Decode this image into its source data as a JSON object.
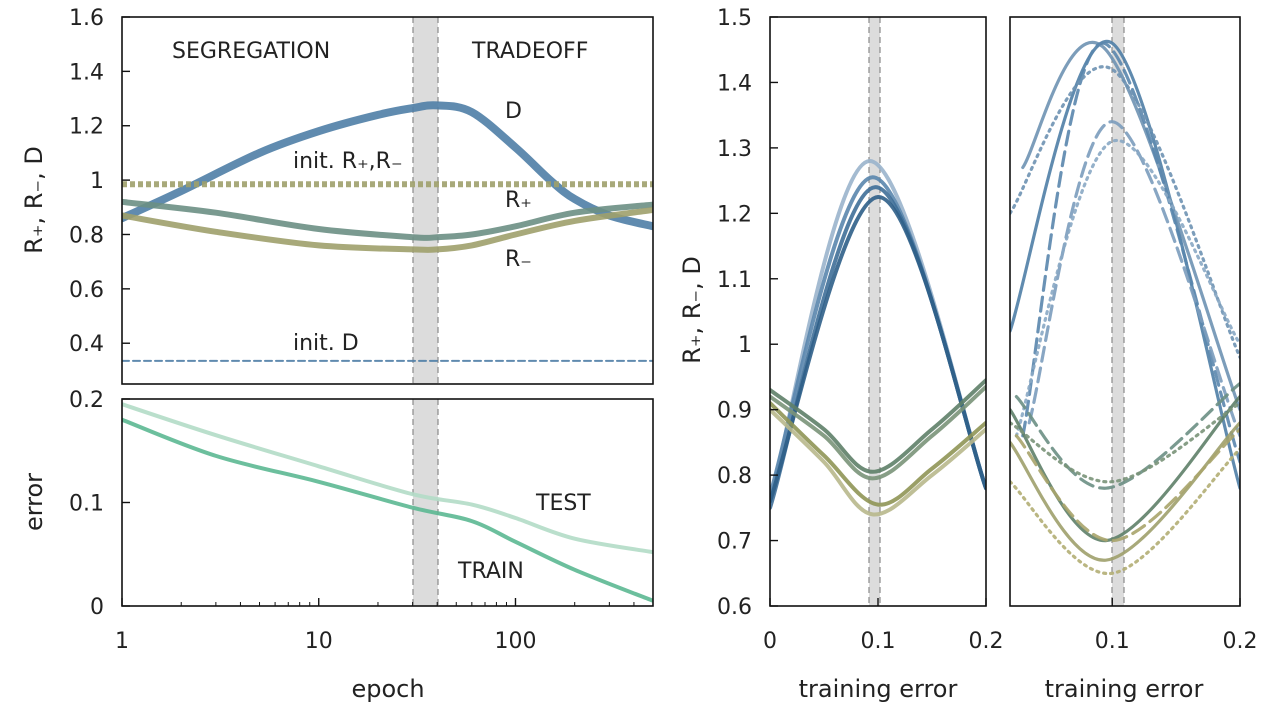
{
  "chart_data": [
    {
      "id": "top-left",
      "type": "line",
      "title": "",
      "xscale": "log",
      "xlim": [
        1,
        500
      ],
      "ylim": [
        0.25,
        1.6
      ],
      "ylabel": "R₊, R₋, D",
      "yticks": [
        "0.4",
        "0.6",
        "0.8",
        "1",
        "1.2",
        "1.4",
        "1.6"
      ],
      "region_labels": {
        "left": "SEGREGATION",
        "right": "TRADEOFF"
      },
      "shaded_band": [
        30,
        40
      ],
      "series": [
        {
          "name": "D",
          "label": "D",
          "color": "#4f7ea6",
          "x": [
            1,
            2,
            5,
            10,
            20,
            30,
            40,
            60,
            100,
            150,
            200,
            300,
            500
          ],
          "y": [
            0.86,
            0.96,
            1.1,
            1.18,
            1.24,
            1.265,
            1.275,
            1.25,
            1.12,
            1.0,
            0.93,
            0.87,
            0.83
          ]
        },
        {
          "name": "R+",
          "label": "R₊",
          "color": "#6b8f84",
          "x": [
            1,
            3,
            10,
            30,
            40,
            60,
            100,
            200,
            500
          ],
          "y": [
            0.92,
            0.88,
            0.82,
            0.79,
            0.79,
            0.8,
            0.83,
            0.88,
            0.91
          ]
        },
        {
          "name": "R-",
          "label": "R₋",
          "color": "#9ea06b",
          "x": [
            1,
            3,
            10,
            30,
            40,
            60,
            100,
            200,
            500
          ],
          "y": [
            0.87,
            0.81,
            0.76,
            0.745,
            0.745,
            0.76,
            0.8,
            0.85,
            0.89
          ]
        },
        {
          "name": "init. R+,R-",
          "label": "init. R₊,R₋",
          "color": "#9ea06b",
          "style": "dotted",
          "x": [
            1,
            500
          ],
          "y": [
            0.985,
            0.985
          ]
        },
        {
          "name": "init. D",
          "label": "init. D",
          "color": "#4f7ea6",
          "style": "dashed",
          "x": [
            1,
            500
          ],
          "y": [
            0.335,
            0.335
          ]
        }
      ]
    },
    {
      "id": "bottom-left",
      "type": "line",
      "xscale": "log",
      "xlim": [
        1,
        500
      ],
      "ylim": [
        0,
        0.2
      ],
      "xlabel": "epoch",
      "ylabel": "error",
      "xticks": [
        "1",
        "10",
        "100"
      ],
      "yticks": [
        "0",
        "0.1",
        "0.2"
      ],
      "shaded_band": [
        30,
        40
      ],
      "series": [
        {
          "name": "TEST",
          "label": "TEST",
          "color": "#b2dcc6",
          "x": [
            1,
            3,
            10,
            30,
            60,
            100,
            200,
            500
          ],
          "y": [
            0.195,
            0.165,
            0.135,
            0.108,
            0.098,
            0.085,
            0.065,
            0.052
          ]
        },
        {
          "name": "TRAIN",
          "label": "TRAIN",
          "color": "#5cb892",
          "x": [
            1,
            3,
            10,
            30,
            60,
            100,
            200,
            500
          ],
          "y": [
            0.18,
            0.145,
            0.12,
            0.095,
            0.082,
            0.062,
            0.035,
            0.005
          ]
        }
      ]
    },
    {
      "id": "middle",
      "type": "line",
      "xlim": [
        0,
        0.2
      ],
      "ylim": [
        0.6,
        1.5
      ],
      "xlabel": "training error",
      "ylabel": "R₊, R₋, D",
      "xticks": [
        "0",
        "0.1",
        "0.2"
      ],
      "yticks": [
        "0.6",
        "0.7",
        "0.8",
        "0.9",
        "1",
        "1.1",
        "1.2",
        "1.3",
        "1.4",
        "1.5"
      ],
      "shaded_band": [
        0.092,
        0.102
      ],
      "series": [
        {
          "name": "D run 1",
          "color": "#9ab4cc",
          "x": [
            0,
            0.092,
            0.2
          ],
          "y": [
            0.76,
            1.28,
            0.78
          ]
        },
        {
          "name": "D run 2",
          "color": "#5a86ad",
          "x": [
            0,
            0.095,
            0.2
          ],
          "y": [
            0.77,
            1.255,
            0.78
          ]
        },
        {
          "name": "D run 3",
          "color": "#3f6f98",
          "x": [
            0,
            0.097,
            0.2
          ],
          "y": [
            0.75,
            1.24,
            0.78
          ]
        },
        {
          "name": "D run 4",
          "color": "#2f5f88",
          "x": [
            0,
            0.1,
            0.2
          ],
          "y": [
            0.76,
            1.225,
            0.78
          ]
        },
        {
          "name": "R+ run 1",
          "color": "#5e7f68",
          "x": [
            0,
            0.05,
            0.095,
            0.15,
            0.2
          ],
          "y": [
            0.93,
            0.87,
            0.805,
            0.87,
            0.945
          ]
        },
        {
          "name": "R+ run 2",
          "color": "#7a9479",
          "x": [
            0,
            0.05,
            0.095,
            0.15,
            0.2
          ],
          "y": [
            0.92,
            0.86,
            0.795,
            0.86,
            0.935
          ]
        },
        {
          "name": "R- run 1",
          "color": "#8f9555",
          "x": [
            0,
            0.05,
            0.1,
            0.15,
            0.2
          ],
          "y": [
            0.91,
            0.83,
            0.755,
            0.81,
            0.88
          ]
        },
        {
          "name": "R- run 2",
          "color": "#b8b88c",
          "x": [
            0,
            0.05,
            0.095,
            0.15,
            0.2
          ],
          "y": [
            0.9,
            0.82,
            0.74,
            0.8,
            0.87
          ]
        }
      ]
    },
    {
      "id": "right",
      "type": "line",
      "xlim": [
        0.02,
        0.2
      ],
      "ylim": [
        0.6,
        1.5
      ],
      "xlabel": "training error",
      "xticks": [
        "0.1",
        "0.2"
      ],
      "shaded_band": [
        0.092,
        0.102
      ],
      "series": [
        {
          "name": "D solid 1",
          "color": "#4f7ea6",
          "style": "solid",
          "x": [
            0.02,
            0.1,
            0.2
          ],
          "y": [
            1.02,
            1.46,
            0.78
          ]
        },
        {
          "name": "D solid 2",
          "color": "#6e92b3",
          "style": "solid",
          "x": [
            0.03,
            0.095,
            0.2
          ],
          "y": [
            1.27,
            1.45,
            0.9
          ]
        },
        {
          "name": "D dashed 1",
          "color": "#5a86ad",
          "style": "dashed",
          "x": [
            0.03,
            0.093,
            0.2
          ],
          "y": [
            0.86,
            1.46,
            0.82
          ]
        },
        {
          "name": "D dashed 2",
          "color": "#7b9cbc",
          "style": "dashed",
          "x": [
            0.035,
            0.1,
            0.2
          ],
          "y": [
            0.88,
            1.34,
            0.86
          ]
        },
        {
          "name": "D dotted 1",
          "color": "#6e92b3",
          "style": "dotted",
          "x": [
            0.02,
            0.1,
            0.2
          ],
          "y": [
            1.2,
            1.42,
            0.98
          ]
        },
        {
          "name": "D dotted 2",
          "color": "#8aa8c4",
          "style": "dotted",
          "x": [
            0.025,
            0.1,
            0.2
          ],
          "y": [
            0.86,
            1.31,
            1.0
          ]
        },
        {
          "name": "R+ solid",
          "color": "#5e7f68",
          "style": "solid",
          "x": [
            0.02,
            0.095,
            0.2
          ],
          "y": [
            0.9,
            0.7,
            0.92
          ]
        },
        {
          "name": "R+ dashed",
          "color": "#6b8f84",
          "style": "dashed",
          "x": [
            0.025,
            0.095,
            0.2
          ],
          "y": [
            0.92,
            0.78,
            0.94
          ]
        },
        {
          "name": "R+ dotted",
          "color": "#7a9479",
          "style": "dotted",
          "x": [
            0.02,
            0.1,
            0.2
          ],
          "y": [
            0.88,
            0.79,
            0.91
          ]
        },
        {
          "name": "R- solid",
          "color": "#9ea06b",
          "style": "solid",
          "x": [
            0.02,
            0.095,
            0.2
          ],
          "y": [
            0.85,
            0.67,
            0.88
          ]
        },
        {
          "name": "R- dashed",
          "color": "#a8a46c",
          "style": "dashed",
          "x": [
            0.025,
            0.1,
            0.2
          ],
          "y": [
            0.86,
            0.7,
            0.87
          ]
        },
        {
          "name": "R- dotted",
          "color": "#b3ae74",
          "style": "dotted",
          "x": [
            0.02,
            0.1,
            0.2
          ],
          "y": [
            0.79,
            0.65,
            0.84
          ]
        }
      ]
    }
  ]
}
